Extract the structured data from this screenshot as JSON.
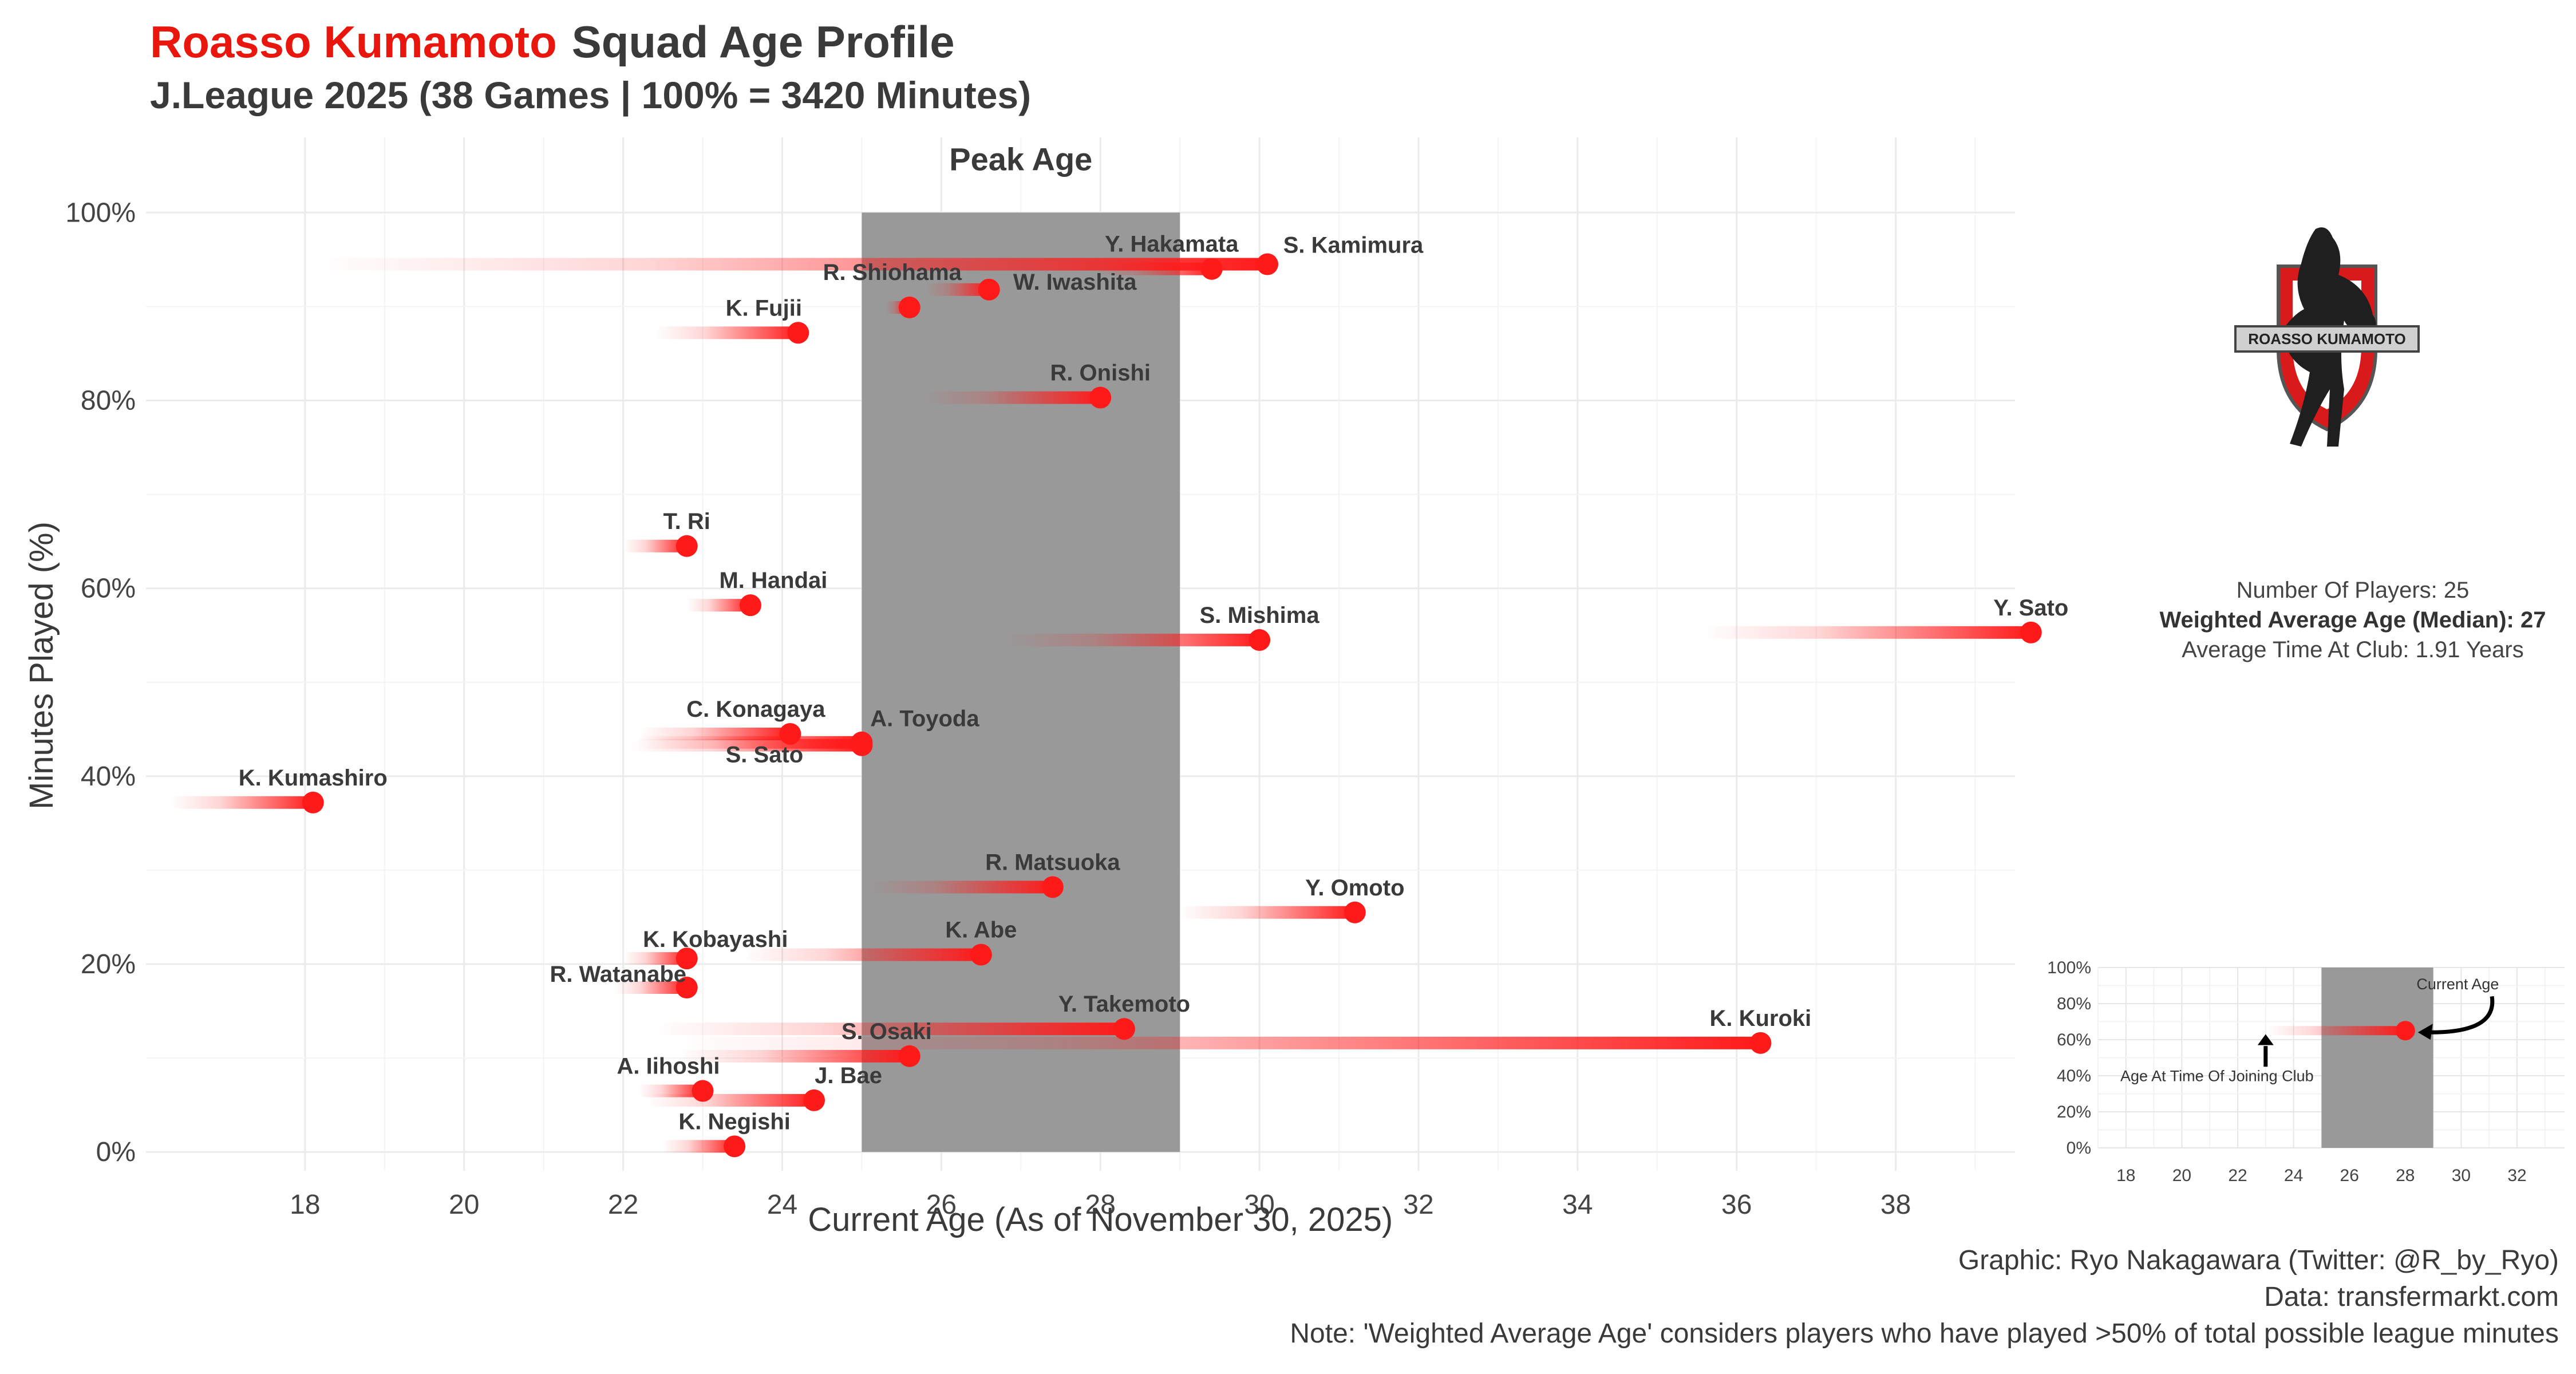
{
  "header": {
    "team_name": "Roasso Kumamoto",
    "title": "Squad Age Profile",
    "subtitle": "J.League 2025 (38 Games | 100% = 3420 Minutes)"
  },
  "colors": {
    "accent": "#e8160c",
    "peak_band": "#999999",
    "point": "#ff1a1a",
    "text": "#3a3a3a"
  },
  "chart_data": {
    "type": "scatter",
    "title": "Roasso Kumamoto Squad Age Profile",
    "xlabel": "Current Age (As of November 30, 2025)",
    "ylabel": "Minutes Played (%)",
    "xlim": [
      16,
      39.5
    ],
    "ylim": [
      -2,
      108
    ],
    "x_ticks": [
      18,
      20,
      22,
      24,
      26,
      28,
      30,
      32,
      34,
      36,
      38
    ],
    "y_ticks": [
      0,
      20,
      40,
      60,
      80,
      100
    ],
    "y_tick_labels": [
      "0%",
      "20%",
      "40%",
      "60%",
      "80%",
      "100%"
    ],
    "peak_age": {
      "label": "Peak Age",
      "from": 25,
      "to": 29
    },
    "players": [
      {
        "name": "S. Kamimura",
        "age": 30.1,
        "joined_age": 18.1,
        "minutes_pct": 94.5
      },
      {
        "name": "Y. Hakamata",
        "age": 29.4,
        "joined_age": 27.9,
        "minutes_pct": 94.0
      },
      {
        "name": "W. Iwashita",
        "age": 26.6,
        "joined_age": 25.8,
        "minutes_pct": 91.8
      },
      {
        "name": "R. Shiohama",
        "age": 25.6,
        "joined_age": 25.3,
        "minutes_pct": 89.9
      },
      {
        "name": "K. Fujii",
        "age": 24.2,
        "joined_age": 22.4,
        "minutes_pct": 87.2
      },
      {
        "name": "R. Onishi",
        "age": 28.0,
        "joined_age": 25.8,
        "minutes_pct": 80.3
      },
      {
        "name": "T. Ri",
        "age": 22.8,
        "joined_age": 22.0,
        "minutes_pct": 64.5
      },
      {
        "name": "M. Handai",
        "age": 23.6,
        "joined_age": 22.8,
        "minutes_pct": 58.2
      },
      {
        "name": "Y. Sato",
        "age": 39.7,
        "joined_age": 35.6,
        "minutes_pct": 55.3
      },
      {
        "name": "S. Mishima",
        "age": 30.0,
        "joined_age": 26.8,
        "minutes_pct": 54.5
      },
      {
        "name": "C. Konagaya",
        "age": 24.1,
        "joined_age": 22.2,
        "minutes_pct": 44.5
      },
      {
        "name": "A. Toyoda",
        "age": 25.0,
        "joined_age": 22.2,
        "minutes_pct": 43.6
      },
      {
        "name": "S. Sato",
        "age": 25.0,
        "joined_age": 22.1,
        "minutes_pct": 43.3
      },
      {
        "name": "K. Kumashiro",
        "age": 18.1,
        "joined_age": 16.3,
        "minutes_pct": 37.2
      },
      {
        "name": "R. Matsuoka",
        "age": 27.4,
        "joined_age": 25.1,
        "minutes_pct": 28.2
      },
      {
        "name": "Y. Omoto",
        "age": 31.2,
        "joined_age": 29.0,
        "minutes_pct": 25.5
      },
      {
        "name": "K. Abe",
        "age": 26.5,
        "joined_age": 23.5,
        "minutes_pct": 21.0
      },
      {
        "name": "K. Kobayashi",
        "age": 22.8,
        "joined_age": 22.0,
        "minutes_pct": 20.6
      },
      {
        "name": "R. Watanabe",
        "age": 22.8,
        "joined_age": 21.9,
        "minutes_pct": 17.5
      },
      {
        "name": "Y. Takemoto",
        "age": 28.3,
        "joined_age": 22.4,
        "minutes_pct": 13.1
      },
      {
        "name": "K. Kuroki",
        "age": 36.3,
        "joined_age": 22.6,
        "minutes_pct": 11.6
      },
      {
        "name": "S. Osaki",
        "age": 25.6,
        "joined_age": 22.7,
        "minutes_pct": 10.2
      },
      {
        "name": "A. Iihoshi",
        "age": 23.0,
        "joined_age": 22.2,
        "minutes_pct": 6.5
      },
      {
        "name": "J. Bae",
        "age": 24.4,
        "joined_age": 22.3,
        "minutes_pct": 5.5
      },
      {
        "name": "K. Negishi",
        "age": 23.4,
        "joined_age": 22.5,
        "minutes_pct": 0.6
      }
    ]
  },
  "logo": {
    "banner_text": "ROASSO KUMAMOTO"
  },
  "stats": {
    "players": "Number Of Players: 25",
    "weighted_age": "Weighted Average Age (Median): 27",
    "time_at_club": "Average Time At Club: 1.91 Years"
  },
  "legend_chart": {
    "x_ticks": [
      18,
      20,
      22,
      24,
      26,
      28,
      30,
      32
    ],
    "y_ticks": [
      0,
      20,
      40,
      60,
      80,
      100
    ],
    "y_tick_labels": [
      "0%",
      "20%",
      "40%",
      "60%",
      "80%",
      "100%"
    ],
    "example": {
      "joined_age": 23,
      "age": 28,
      "minutes_pct": 65
    },
    "current_age_label": "Current Age",
    "joining_label": "Age At Time Of Joining Club"
  },
  "credits": {
    "graphic": "Graphic: Ryo Nakagawara (Twitter: @R_by_Ryo)",
    "data": "Data: transfermarkt.com",
    "note": "Note: 'Weighted Average Age' considers players who have played >50% of total possible league minutes"
  }
}
